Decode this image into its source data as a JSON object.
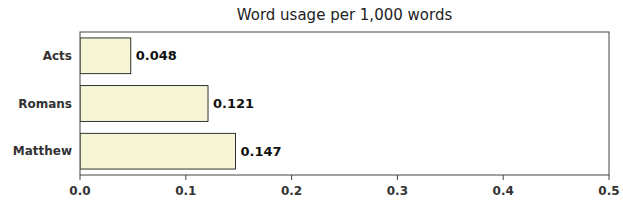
{
  "chart_data": {
    "type": "bar",
    "orientation": "horizontal",
    "title": "Word usage per 1,000 words",
    "categories": [
      "Acts",
      "Romans",
      "Matthew"
    ],
    "values": [
      0.048,
      0.121,
      0.147
    ],
    "color": "#f5f5d5",
    "xlim": [
      0.0,
      0.5
    ],
    "xticks": [
      {
        "value": 0,
        "label": "0.0"
      },
      0.1,
      0.2,
      0.3,
      0.4,
      0.5
    ],
    "data_labels": true
  }
}
